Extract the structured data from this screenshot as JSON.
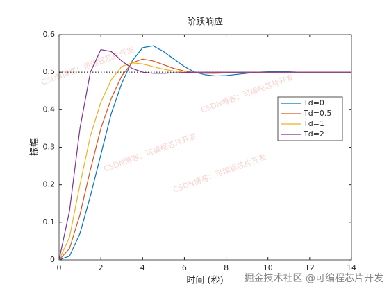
{
  "chart_data": {
    "type": "line",
    "title": "阶跃响应",
    "x_label": "时间 (秒)",
    "y_label": "振幅",
    "x": [
      0,
      0.5,
      1,
      1.5,
      2,
      2.5,
      3,
      3.5,
      4,
      4.5,
      5,
      5.5,
      6,
      6.5,
      7,
      7.5,
      8,
      8.5,
      9,
      9.5,
      10,
      10.5,
      11,
      11.5,
      12,
      12.5,
      13,
      13.5,
      14
    ],
    "series": [
      {
        "name": "Td=0",
        "color": "#0072bd",
        "values": [
          0,
          0.01,
          0.07,
          0.17,
          0.28,
          0.39,
          0.47,
          0.53,
          0.565,
          0.57,
          0.555,
          0.535,
          0.515,
          0.5,
          0.493,
          0.49,
          0.491,
          0.494,
          0.497,
          0.5,
          0.501,
          0.501,
          0.501,
          0.5,
          0.5,
          0.5,
          0.5,
          0.5,
          0.5
        ]
      },
      {
        "name": "Td=0.5",
        "color": "#d95319",
        "values": [
          0,
          0.03,
          0.12,
          0.24,
          0.35,
          0.43,
          0.49,
          0.525,
          0.535,
          0.53,
          0.52,
          0.51,
          0.503,
          0.499,
          0.497,
          0.497,
          0.498,
          0.499,
          0.5,
          0.5,
          0.5,
          0.5,
          0.5,
          0.5,
          0.5,
          0.5,
          0.5,
          0.5,
          0.5
        ]
      },
      {
        "name": "Td=1",
        "color": "#edb120",
        "values": [
          0,
          0.06,
          0.2,
          0.33,
          0.42,
          0.48,
          0.515,
          0.525,
          0.522,
          0.515,
          0.508,
          0.503,
          0.5,
          0.498,
          0.498,
          0.499,
          0.5,
          0.5,
          0.5,
          0.5,
          0.5,
          0.5,
          0.5,
          0.5,
          0.5,
          0.5,
          0.5,
          0.5,
          0.5
        ]
      },
      {
        "name": "Td=2",
        "color": "#7e2f8e",
        "values": [
          0,
          0.13,
          0.35,
          0.5,
          0.56,
          0.555,
          0.53,
          0.51,
          0.5,
          0.497,
          0.497,
          0.498,
          0.499,
          0.5,
          0.5,
          0.5,
          0.5,
          0.5,
          0.5,
          0.5,
          0.5,
          0.5,
          0.5,
          0.5,
          0.5,
          0.5,
          0.5,
          0.5,
          0.5
        ]
      }
    ],
    "reference_line": 0.5,
    "xlim": [
      0,
      14
    ],
    "xticks": [
      0,
      2,
      4,
      6,
      8,
      10,
      12,
      14
    ],
    "ylim": [
      0,
      0.6
    ],
    "yticks": [
      0,
      0.1,
      0.2,
      0.3,
      0.4,
      0.5,
      0.6
    ],
    "legend": "upper right",
    "watermarks": [
      "CSDN博客：可编程芯片开发",
      "掘金技术社区 @可编程芯片开发"
    ]
  }
}
